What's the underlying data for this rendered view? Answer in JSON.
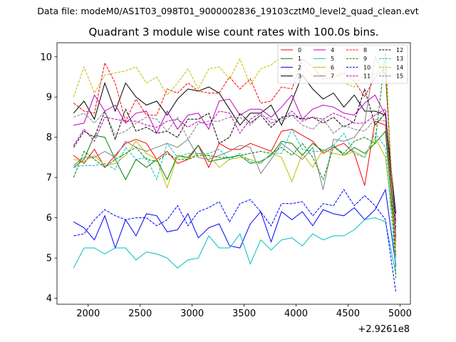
{
  "chart_data": {
    "type": "line",
    "suptitle": "Data file: modeM0/AS1T03_098T01_9000002836_19103cztM0_level2_quad_clean.evt",
    "title": "Quadrant 3 module wise count rates with 100.0s bins.",
    "xlabel": "",
    "ylabel": "",
    "x_offset_label": "+2.9261e8",
    "xlim": [
      1700,
      5100
    ],
    "ylim": [
      3.85,
      10.35
    ],
    "xticks": [
      2000,
      2500,
      3000,
      3500,
      4000,
      4500,
      5000
    ],
    "yticks": [
      4,
      5,
      6,
      7,
      8,
      9,
      10
    ],
    "x": [
      1860,
      1960,
      2060,
      2160,
      2260,
      2360,
      2460,
      2560,
      2660,
      2760,
      2860,
      2960,
      3060,
      3160,
      3260,
      3360,
      3460,
      3560,
      3660,
      3760,
      3860,
      3960,
      4060,
      4160,
      4260,
      4360,
      4460,
      4560,
      4660,
      4760,
      4860,
      4960
    ],
    "legend": {
      "location": "top-right",
      "columns": 4
    },
    "series": [
      {
        "name": "0",
        "color": "#ff0000",
        "dash": "solid",
        "values": [
          7.55,
          7.35,
          7.7,
          7.25,
          7.55,
          7.85,
          7.95,
          7.85,
          7.45,
          7.65,
          7.35,
          7.45,
          7.8,
          7.25,
          7.85,
          7.7,
          7.7,
          7.85,
          7.75,
          7.65,
          8.15,
          8.2,
          8.05,
          7.9,
          7.6,
          7.75,
          7.85,
          7.6,
          6.8,
          8.4,
          8.3,
          5.5
        ]
      },
      {
        "name": "1",
        "color": "#008000",
        "dash": "solid",
        "values": [
          7.25,
          7.45,
          8.05,
          8.0,
          7.45,
          6.95,
          7.45,
          7.25,
          7.45,
          6.95,
          7.55,
          7.5,
          7.8,
          7.4,
          7.45,
          7.5,
          7.55,
          7.35,
          7.4,
          7.55,
          7.9,
          7.85,
          7.55,
          7.85,
          7.65,
          7.8,
          7.55,
          7.75,
          7.6,
          7.85,
          8.15,
          5.1
        ]
      },
      {
        "name": "2",
        "color": "#0000ff",
        "dash": "solid",
        "values": [
          5.9,
          5.75,
          5.45,
          6.05,
          5.25,
          5.95,
          5.55,
          6.1,
          6.05,
          5.65,
          5.7,
          6.1,
          5.5,
          5.75,
          5.85,
          5.3,
          5.25,
          5.85,
          6.15,
          5.4,
          6.15,
          5.95,
          6.15,
          5.8,
          6.2,
          6.1,
          6.05,
          6.25,
          5.95,
          6.2,
          6.7,
          4.8
        ]
      },
      {
        "name": "3",
        "color": "#000000",
        "dash": "solid",
        "values": [
          8.6,
          8.9,
          8.45,
          9.35,
          8.65,
          9.35,
          9.0,
          8.8,
          8.9,
          8.55,
          8.95,
          9.2,
          9.15,
          9.25,
          9.1,
          8.7,
          8.3,
          8.6,
          8.6,
          8.8,
          8.3,
          8.9,
          9.55,
          9.2,
          8.95,
          9.1,
          8.75,
          9.05,
          8.65,
          8.65,
          8.55,
          6.1
        ]
      },
      {
        "name": "4",
        "color": "#bf00bf",
        "dash": "solid",
        "values": [
          8.3,
          8.35,
          9.05,
          8.65,
          8.8,
          8.35,
          8.6,
          8.65,
          8.1,
          8.65,
          8.2,
          8.55,
          8.6,
          8.2,
          8.9,
          8.95,
          8.55,
          8.7,
          8.7,
          8.5,
          8.75,
          9.05,
          8.45,
          8.7,
          8.8,
          8.75,
          8.6,
          8.55,
          8.85,
          9.05,
          8.55,
          5.9
        ]
      },
      {
        "name": "5",
        "color": "#00bfbf",
        "dash": "solid",
        "values": [
          4.75,
          5.25,
          5.25,
          5.1,
          5.25,
          5.25,
          4.95,
          5.15,
          5.1,
          5.0,
          4.75,
          4.95,
          5.0,
          5.55,
          5.25,
          5.25,
          5.6,
          4.85,
          5.45,
          5.2,
          5.45,
          5.5,
          5.3,
          5.6,
          5.45,
          5.55,
          5.55,
          5.7,
          5.95,
          6.0,
          5.9,
          4.6
        ]
      },
      {
        "name": "6",
        "color": "#bfbf00",
        "dash": "solid",
        "values": [
          7.45,
          7.4,
          7.55,
          7.3,
          7.35,
          7.55,
          7.9,
          7.6,
          7.45,
          6.75,
          7.55,
          7.45,
          7.6,
          7.55,
          7.25,
          7.45,
          7.5,
          7.45,
          7.35,
          7.6,
          7.5,
          6.9,
          7.6,
          7.25,
          7.7,
          7.6,
          7.55,
          7.65,
          7.5,
          8.0,
          7.5,
          5.3
        ]
      },
      {
        "name": "7",
        "color": "#808080",
        "dash": "solid",
        "values": [
          7.3,
          7.5,
          7.5,
          7.65,
          7.5,
          7.9,
          7.75,
          7.65,
          7.75,
          7.85,
          7.75,
          7.95,
          7.5,
          7.45,
          7.55,
          7.65,
          7.8,
          7.75,
          7.1,
          7.45,
          7.85,
          7.65,
          7.45,
          7.75,
          6.7,
          7.95,
          7.9,
          8.0,
          8.35,
          10.0,
          9.55,
          5.4
        ]
      },
      {
        "name": "8",
        "color": "#ff0000",
        "dash": "dashed",
        "values": [
          8.85,
          8.65,
          8.6,
          9.85,
          9.35,
          8.4,
          8.95,
          8.55,
          8.55,
          9.2,
          9.1,
          9.35,
          9.15,
          9.1,
          9.1,
          9.5,
          9.2,
          9.45,
          8.85,
          8.9,
          9.25,
          9.2,
          9.95,
          9.75,
          9.45,
          9.5,
          9.6,
          9.4,
          9.0,
          9.5,
          9.7,
          5.0
        ]
      },
      {
        "name": "9",
        "color": "#008000",
        "dash": "dashed",
        "values": [
          7.0,
          7.65,
          7.45,
          7.25,
          7.45,
          7.6,
          7.75,
          7.45,
          7.4,
          7.6,
          7.45,
          7.45,
          7.55,
          7.55,
          7.5,
          7.5,
          7.55,
          7.6,
          7.65,
          7.6,
          7.75,
          7.55,
          7.85,
          7.5,
          6.95,
          7.75,
          7.6,
          7.9,
          8.0,
          7.85,
          10.1,
          4.5
        ]
      },
      {
        "name": "10",
        "color": "#0000ff",
        "dash": "dashed",
        "values": [
          5.55,
          5.6,
          5.95,
          6.2,
          6.05,
          5.95,
          6.0,
          6.0,
          5.8,
          5.95,
          6.3,
          5.8,
          6.15,
          6.25,
          6.4,
          5.9,
          6.35,
          6.45,
          6.15,
          5.8,
          6.35,
          6.35,
          6.4,
          6.05,
          6.35,
          6.3,
          6.7,
          6.3,
          6.55,
          6.3,
          5.95,
          4.15
        ]
      },
      {
        "name": "11",
        "color": "#bf00bf",
        "dash": "dashed",
        "values": [
          7.8,
          8.2,
          7.9,
          8.5,
          8.45,
          8.4,
          8.4,
          8.3,
          8.25,
          8.4,
          8.45,
          8.25,
          8.4,
          8.3,
          8.65,
          8.6,
          8.1,
          8.45,
          8.6,
          8.35,
          8.45,
          8.65,
          8.4,
          8.5,
          8.45,
          8.6,
          8.5,
          8.35,
          8.35,
          8.55,
          8.7,
          5.5
        ]
      },
      {
        "name": "12",
        "color": "#000000",
        "dash": "dashed",
        "values": [
          7.75,
          8.15,
          8.0,
          8.65,
          7.95,
          8.7,
          8.15,
          8.25,
          8.1,
          8.15,
          8.0,
          8.45,
          8.45,
          8.6,
          7.85,
          8.0,
          8.6,
          8.35,
          8.55,
          8.25,
          8.5,
          8.55,
          8.45,
          8.5,
          8.35,
          8.5,
          8.25,
          8.4,
          9.2,
          8.3,
          8.6,
          5.7
        ]
      },
      {
        "name": "13",
        "color": "#00bfbf",
        "dash": "dashed",
        "values": [
          7.25,
          7.3,
          7.3,
          7.35,
          7.2,
          7.75,
          7.45,
          7.5,
          6.95,
          7.85,
          7.5,
          7.6,
          7.6,
          7.6,
          7.7,
          7.45,
          7.6,
          7.4,
          7.35,
          7.6,
          7.6,
          8.2,
          7.7,
          7.65,
          7.65,
          7.8,
          8.1,
          7.6,
          7.5,
          8.1,
          7.75,
          4.75
        ]
      },
      {
        "name": "14",
        "color": "#bfbf00",
        "dash": "dashed",
        "values": [
          9.0,
          9.75,
          9.1,
          9.55,
          9.6,
          9.65,
          9.75,
          9.35,
          9.5,
          9.05,
          9.35,
          9.7,
          9.2,
          9.7,
          9.75,
          9.45,
          9.95,
          9.3,
          9.7,
          9.8,
          10.0,
          9.55,
          9.85,
          9.5,
          9.55,
          9.75,
          9.35,
          9.25,
          9.6,
          9.55,
          9.9,
          5.0
        ]
      },
      {
        "name": "15",
        "color": "#808080",
        "dash": "dashed",
        "values": [
          8.5,
          8.6,
          8.35,
          8.65,
          8.05,
          8.15,
          8.35,
          8.5,
          8.45,
          8.15,
          8.5,
          7.95,
          8.35,
          8.4,
          8.4,
          8.5,
          8.5,
          8.3,
          8.55,
          8.45,
          8.4,
          8.55,
          8.3,
          8.2,
          8.45,
          8.1,
          8.3,
          8.2,
          8.15,
          8.45,
          8.4,
          5.6
        ]
      }
    ]
  }
}
